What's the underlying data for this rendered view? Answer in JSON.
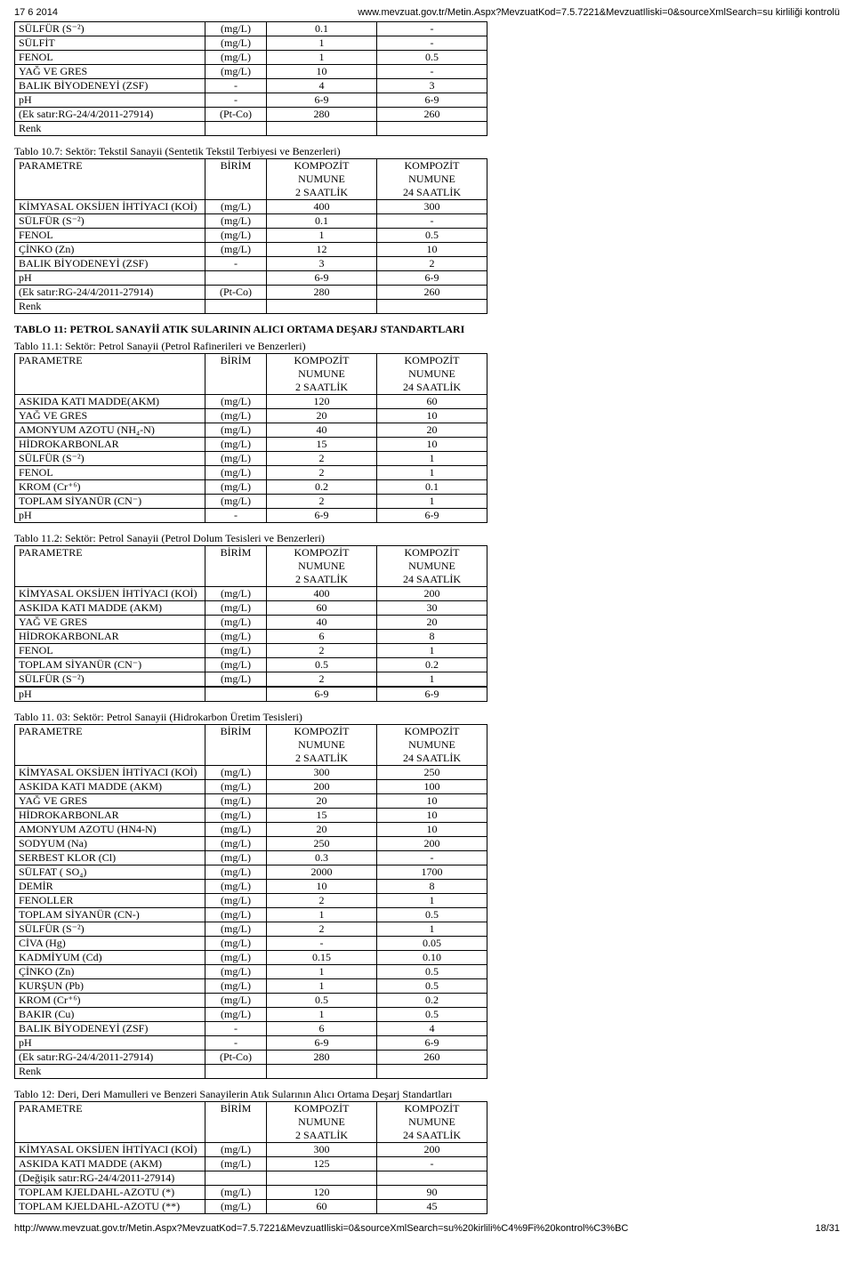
{
  "header": {
    "date": "17 6 2014",
    "url": "www.mevzuat.gov.tr/Metin.Aspx?MevzuatKod=7.5.7221&MevzuatIliski=0&sourceXmlSearch=su kirliliği kontrolü"
  },
  "footer": {
    "url": "http://www.mevzuat.gov.tr/Metin.Aspx?MevzuatKod=7.5.7221&MevzuatIliski=0&sourceXmlSearch=su%20kirlili%C4%9Fi%20kontrol%C3%BC",
    "page": "18/31"
  },
  "hdr": {
    "param": "PARAMETRE",
    "unit": "BİRİM",
    "c2": "KOMPOZİT NUMUNE 2 SAATLİK",
    "c24": "KOMPOZİT NUMUNE 24 SAATLİK"
  },
  "captions": {
    "t10_7": "Tablo 10.7: Sektör: Tekstil Sanayii (Sentetik Tekstil Terbiyesi ve Benzerleri)",
    "t11_title": "TABLO 11: PETROL SANAYİİ ATIK SULARININ ALICI ORTAMA DEŞARJ  STANDARTLARI",
    "t11_1": "Tablo 11.1: Sektör: Petrol Sanayii (Petrol Rafinerileri ve Benzerleri)",
    "t11_2": "Tablo 11.2: Sektör: Petrol Sanayii (Petrol Dolum Tesisleri  ve Benzerleri)",
    "t11_03": "Tablo 11. 03: Sektör: Petrol Sanayii  (Hidrokarbon  Üretim Tesisleri)",
    "t12": "Tablo 12: Deri, Deri Mamulleri ve Benzeri Sanayilerin Atık  Sularının  Alıcı Ortama Deşarj Standartları"
  },
  "t10_6": [
    {
      "p": "SÜLFÜR (S⁻²)",
      "u": "(mg/L)",
      "a": "0.1",
      "b": "-"
    },
    {
      "p": "SÜLFİT",
      "u": "(mg/L)",
      "a": "1",
      "b": "-"
    },
    {
      "p": "FENOL",
      "u": "(mg/L)",
      "a": "1",
      "b": "0.5"
    },
    {
      "p": "YAĞ VE GRES",
      "u": "(mg/L)",
      "a": "10",
      "b": "-"
    },
    {
      "p": "BALIK BİYODENEYİ (ZSF)",
      "u": "-",
      "a": "4",
      "b": "3"
    },
    {
      "p": "pH",
      "u": "-",
      "a": "6-9",
      "b": "6-9"
    },
    {
      "p": "(Ek satır:RG-24/4/2011-27914)",
      "u": "(Pt-Co)",
      "a": "280",
      "b": "260"
    },
    {
      "p": "Renk",
      "u": "",
      "a": "",
      "b": ""
    }
  ],
  "t10_7": [
    {
      "p": "KİMYASAL OKSİJEN İHTİYACI (KOİ)",
      "u": "(mg/L)",
      "a": "400",
      "b": "300"
    },
    {
      "p": "SÜLFÜR (S⁻²)",
      "u": "(mg/L)",
      "a": "0.1",
      "b": "-"
    },
    {
      "p": "FENOL",
      "u": "(mg/L)",
      "a": "1",
      "b": "0.5"
    },
    {
      "p": "ÇİNKO (Zn)",
      "u": "(mg/L)",
      "a": "12",
      "b": "10"
    },
    {
      "p": "BALIK BİYODENEYİ (ZSF)",
      "u": "-",
      "a": "3",
      "b": "2"
    },
    {
      "p": "pH",
      "u": "",
      "a": "6-9",
      "b": "6-9"
    },
    {
      "p": "(Ek satır:RG-24/4/2011-27914)",
      "u": "(Pt-Co)",
      "a": "280",
      "b": "260"
    },
    {
      "p": "Renk",
      "u": "",
      "a": "",
      "b": ""
    }
  ],
  "t11_1": [
    {
      "p": "ASKIDA KATI MADDE(AKM)",
      "u": "(mg/L)",
      "a": "120",
      "b": "60"
    },
    {
      "p": "YAĞ VE GRES",
      "u": "(mg/L)",
      "a": "20",
      "b": "10"
    },
    {
      "p": "AMONYUM AZOTU (NH₄-N)",
      "u": "(mg/L)",
      "a": "40",
      "b": "20"
    },
    {
      "p": "HİDROKARBONLAR",
      "u": "(mg/L)",
      "a": "15",
      "b": "10"
    },
    {
      "p": "SÜLFÜR (S⁻²)",
      "u": "(mg/L)",
      "a": "2",
      "b": "1"
    },
    {
      "p": "FENOL",
      "u": "(mg/L)",
      "a": "2",
      "b": "1"
    },
    {
      "p": "KROM (Cr⁺⁶)",
      "u": "(mg/L)",
      "a": "0.2",
      "b": "0.1"
    },
    {
      "p": "TOPLAM SİYANÜR (CN⁻)",
      "u": "(mg/L)",
      "a": "2",
      "b": "1"
    },
    {
      "p": "pH",
      "u": "-",
      "a": "6-9",
      "b": "6-9"
    }
  ],
  "t11_2": [
    {
      "p": "KİMYASAL OKSİJEN İHTİYACI (KOİ)",
      "u": "(mg/L)",
      "a": "400",
      "b": "200"
    },
    {
      "p": "ASKIDA KATI MADDE (AKM)",
      "u": "(mg/L)",
      "a": "60",
      "b": "30"
    },
    {
      "p": "YAĞ VE GRES",
      "u": "(mg/L)",
      "a": "40",
      "b": "20"
    },
    {
      "p": "HİDROKARBONLAR",
      "u": "(mg/L)",
      "a": "6",
      "b": "8"
    },
    {
      "p": "FENOL",
      "u": "(mg/L)",
      "a": "2",
      "b": "1"
    },
    {
      "p": "TOPLAM SİYANÜR (CN⁻)",
      "u": "(mg/L)",
      "a": "0.5",
      "b": "0.2"
    },
    {
      "p": "SÜLFÜR (S⁻²)",
      "u": "(mg/L)",
      "a": "2",
      "b": "1"
    },
    {
      "p": "",
      "u": "",
      "a": "",
      "b": ""
    },
    {
      "p": "pH",
      "u": "",
      "a": "6-9",
      "b": "6-9"
    }
  ],
  "t11_03": [
    {
      "p": "KİMYASAL OKSİJEN İHTİYACI (KOİ)",
      "u": "(mg/L)",
      "a": "300",
      "b": "250"
    },
    {
      "p": "ASKIDA KATI MADDE (AKM)",
      "u": "(mg/L)",
      "a": "200",
      "b": "100"
    },
    {
      "p": "YAĞ VE GRES",
      "u": "(mg/L)",
      "a": "20",
      "b": "10"
    },
    {
      "p": "HİDROKARBONLAR",
      "u": "(mg/L)",
      "a": "15",
      "b": "10"
    },
    {
      "p": "AMONYUM AZOTU (HN4-N)",
      "u": "(mg/L)",
      "a": "20",
      "b": "10"
    },
    {
      "p": "SODYUM (Na)",
      "u": "(mg/L)",
      "a": "250",
      "b": "200"
    },
    {
      "p": "SERBEST KLOR (Cl)",
      "u": "(mg/L)",
      "a": "0.3",
      "b": "-"
    },
    {
      "p": "SÜLFAT ( SO₄)",
      "u": "(mg/L)",
      "a": "2000",
      "b": "1700"
    },
    {
      "p": "DEMİR",
      "u": "(mg/L)",
      "a": "10",
      "b": "8"
    },
    {
      "p": "FENOLLER",
      "u": "(mg/L)",
      "a": "2",
      "b": "1"
    },
    {
      "p": "TOPLAM SİYANÜR (CN-)",
      "u": "(mg/L)",
      "a": "1",
      "b": "0.5"
    },
    {
      "p": "SÜLFÜR (S⁻²)",
      "u": "(mg/L)",
      "a": "2",
      "b": "1"
    },
    {
      "p": "CİVA (Hg)",
      "u": "(mg/L)",
      "a": "-",
      "b": "0.05"
    },
    {
      "p": "KADMİYUM (Cd)",
      "u": "(mg/L)",
      "a": "0.15",
      "b": "0.10"
    },
    {
      "p": "ÇİNKO (Zn)",
      "u": "(mg/L)",
      "a": "1",
      "b": "0.5"
    },
    {
      "p": "KURŞUN (Pb)",
      "u": "(mg/L)",
      "a": "1",
      "b": "0.5"
    },
    {
      "p": "KROM (Cr⁺⁶)",
      "u": "(mg/L)",
      "a": "0.5",
      "b": "0.2"
    },
    {
      "p": "BAKIR (Cu)",
      "u": "(mg/L)",
      "a": "1",
      "b": "0.5"
    },
    {
      "p": "BALIK BİYODENEYİ (ZSF)",
      "u": "-",
      "a": "6",
      "b": "4"
    },
    {
      "p": "pH",
      "u": "-",
      "a": "6-9",
      "b": "6-9"
    },
    {
      "p": "(Ek satır:RG-24/4/2011-27914)",
      "u": "(Pt-Co)",
      "a": "280",
      "b": "260"
    },
    {
      "p": "Renk",
      "u": "",
      "a": "",
      "b": ""
    }
  ],
  "t12": [
    {
      "p": "KİMYASAL OKSİJEN İHTİYACI (KOİ)",
      "u": "(mg/L)",
      "a": "300",
      "b": "200"
    },
    {
      "p": "ASKIDA KATI MADDE (AKM)",
      "u": "(mg/L)",
      "a": "125",
      "b": "-"
    },
    {
      "p": "(Değişik satır:RG-24/4/2011-27914)",
      "u": "",
      "a": "",
      "b": ""
    },
    {
      "p": "TOPLAM KJELDAHL-AZOTU (*)",
      "u": "(mg/L)",
      "a": "120",
      "b": "90"
    },
    {
      "p": "TOPLAM KJELDAHL-AZOTU (**)",
      "u": "(mg/L)",
      "a": "60",
      "b": "45"
    }
  ]
}
